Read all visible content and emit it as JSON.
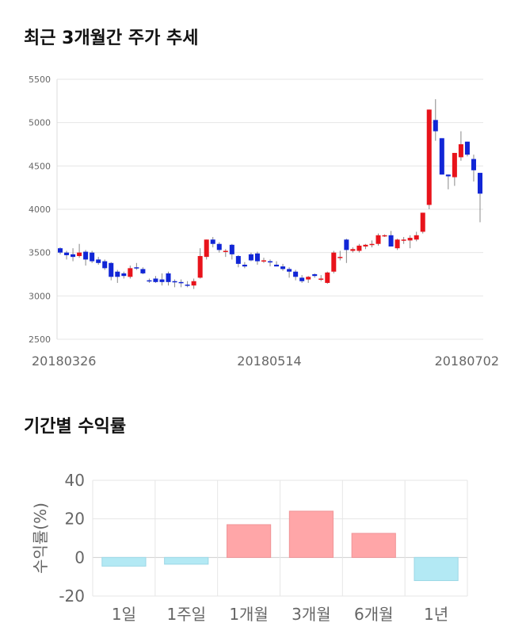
{
  "titles": {
    "candle": "최근 3개월간 주가 추세",
    "returns": "기간별 수익률"
  },
  "colors": {
    "up": "#e8131b",
    "down": "#1126d6",
    "positive_bar": "#ffa6a8",
    "negative_bar": "#b3e9f4",
    "grid": "#e6e6e6"
  },
  "chart_data": [
    {
      "type": "candlestick",
      "title": "최근 3개월간 주가 추세",
      "ylim": [
        2500,
        5500
      ],
      "yticks": [
        2500,
        3000,
        3500,
        4000,
        4500,
        5000,
        5500
      ],
      "xtick_labels": [
        "20180326",
        "20180514",
        "20180702"
      ],
      "grid": "horizontal",
      "candles": [
        [
          3550,
          3560,
          3480,
          3500
        ],
        [
          3500,
          3520,
          3420,
          3470
        ],
        [
          3480,
          3550,
          3400,
          3450
        ],
        [
          3460,
          3600,
          3440,
          3500
        ],
        [
          3510,
          3530,
          3350,
          3420
        ],
        [
          3500,
          3520,
          3380,
          3400
        ],
        [
          3420,
          3450,
          3360,
          3380
        ],
        [
          3400,
          3420,
          3300,
          3320
        ],
        [
          3380,
          3390,
          3180,
          3220
        ],
        [
          3280,
          3300,
          3150,
          3220
        ],
        [
          3260,
          3280,
          3200,
          3230
        ],
        [
          3220,
          3350,
          3200,
          3320
        ],
        [
          3330,
          3380,
          3300,
          3320
        ],
        [
          3310,
          3330,
          3250,
          3260
        ],
        [
          3180,
          3200,
          3150,
          3170
        ],
        [
          3200,
          3230,
          3150,
          3160
        ],
        [
          3190,
          3260,
          3120,
          3160
        ],
        [
          3260,
          3280,
          3120,
          3160
        ],
        [
          3170,
          3190,
          3100,
          3160
        ],
        [
          3160,
          3190,
          3100,
          3150
        ],
        [
          3130,
          3170,
          3100,
          3120
        ],
        [
          3120,
          3200,
          3080,
          3170
        ],
        [
          3210,
          3550,
          3200,
          3460
        ],
        [
          3450,
          3650,
          3420,
          3650
        ],
        [
          3650,
          3680,
          3560,
          3600
        ],
        [
          3600,
          3620,
          3500,
          3530
        ],
        [
          3510,
          3540,
          3450,
          3520
        ],
        [
          3590,
          3600,
          3420,
          3480
        ],
        [
          3460,
          3470,
          3330,
          3370
        ],
        [
          3360,
          3390,
          3320,
          3340
        ],
        [
          3480,
          3500,
          3400,
          3410
        ],
        [
          3490,
          3510,
          3360,
          3400
        ],
        [
          3400,
          3440,
          3380,
          3410
        ],
        [
          3400,
          3420,
          3340,
          3390
        ],
        [
          3360,
          3400,
          3340,
          3340
        ],
        [
          3340,
          3370,
          3290,
          3310
        ],
        [
          3310,
          3330,
          3210,
          3280
        ],
        [
          3280,
          3300,
          3180,
          3220
        ],
        [
          3210,
          3240,
          3150,
          3170
        ],
        [
          3190,
          3230,
          3150,
          3220
        ],
        [
          3250,
          3260,
          3210,
          3230
        ],
        [
          3200,
          3240,
          3170,
          3200
        ],
        [
          3150,
          3280,
          3140,
          3270
        ],
        [
          3280,
          3520,
          3260,
          3500
        ],
        [
          3450,
          3520,
          3410,
          3450
        ],
        [
          3650,
          3660,
          3380,
          3530
        ],
        [
          3520,
          3560,
          3500,
          3540
        ],
        [
          3520,
          3600,
          3500,
          3580
        ],
        [
          3570,
          3600,
          3540,
          3590
        ],
        [
          3600,
          3640,
          3560,
          3600
        ],
        [
          3600,
          3720,
          3580,
          3700
        ],
        [
          3700,
          3710,
          3680,
          3700
        ],
        [
          3700,
          3750,
          3570,
          3570
        ],
        [
          3550,
          3660,
          3530,
          3650
        ],
        [
          3640,
          3680,
          3600,
          3650
        ],
        [
          3640,
          3700,
          3550,
          3670
        ],
        [
          3650,
          3740,
          3630,
          3700
        ],
        [
          3740,
          3960,
          3720,
          3960
        ],
        [
          4050,
          5150,
          4000,
          5150
        ],
        [
          5030,
          5270,
          4790,
          4900
        ],
        [
          4820,
          4820,
          4400,
          4400
        ],
        [
          4400,
          4400,
          4230,
          4380
        ],
        [
          4370,
          4650,
          4270,
          4650
        ],
        [
          4600,
          4900,
          4560,
          4750
        ],
        [
          4780,
          4780,
          4610,
          4630
        ],
        [
          4580,
          4630,
          4320,
          4450
        ],
        [
          4420,
          4420,
          3850,
          4180
        ]
      ]
    },
    {
      "type": "bar",
      "categories": [
        "1일",
        "1주일",
        "1개월",
        "3개월",
        "6개월",
        "1년"
      ],
      "values": [
        -4.5,
        -3.5,
        17,
        24,
        12.5,
        -12
      ],
      "ylabel": "수익률(%)",
      "ylim": [
        -20,
        40
      ],
      "yticks": [
        -20,
        0,
        20,
        40
      ],
      "grid": "both"
    }
  ]
}
